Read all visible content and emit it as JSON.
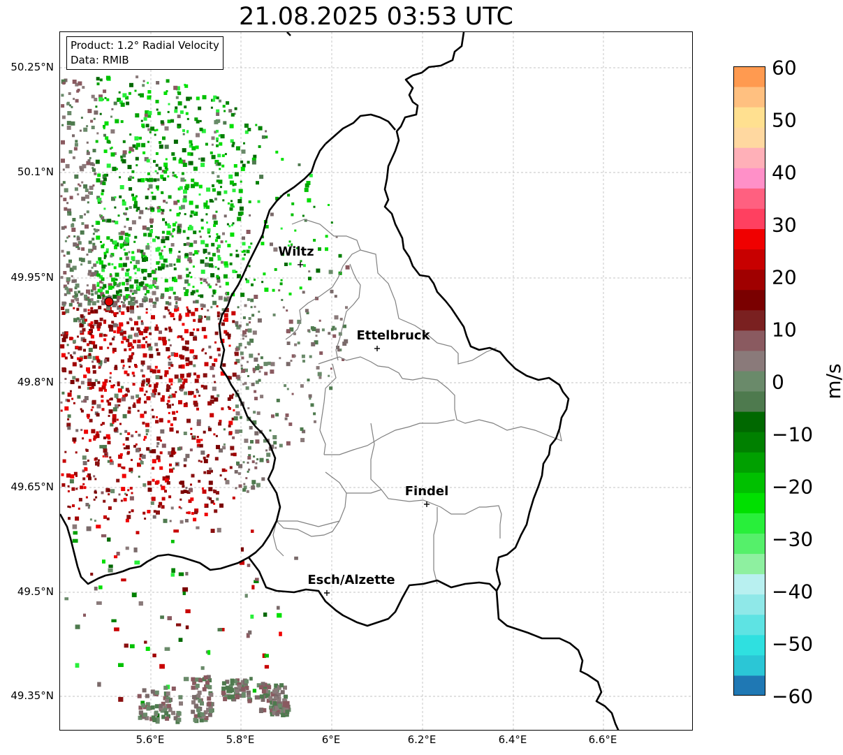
{
  "title": "21.08.2025 03:53 UTC",
  "info": {
    "product": "Product: 1.2° Radial Velocity",
    "data": "Data: RMIB"
  },
  "y_ticks": [
    "50.25°N",
    "50.1°N",
    "49.95°N",
    "49.8°N",
    "49.65°N",
    "49.5°N",
    "49.35°N"
  ],
  "x_ticks": [
    "5.6°E",
    "5.8°E",
    "6°E",
    "6.2°E",
    "6.4°E",
    "6.6°E"
  ],
  "cities": [
    {
      "name": "Wiltz"
    },
    {
      "name": "Ettelbruck"
    },
    {
      "name": "Findel"
    },
    {
      "name": "Esch/Alzette"
    }
  ],
  "colorbar": {
    "unit": "m/s",
    "ticks": [
      "60",
      "50",
      "40",
      "30",
      "20",
      "10",
      "0",
      "−10",
      "−20",
      "−30",
      "−40",
      "−50",
      "−60"
    ],
    "min": -60,
    "max": 60,
    "colors": [
      "#1f78b4",
      "#2bc6d6",
      "#2fe0e0",
      "#5ee3e3",
      "#8fe8e8",
      "#b8f0f0",
      "#8ef0a0",
      "#55f06a",
      "#28ef3a",
      "#00e000",
      "#00c000",
      "#00a000",
      "#008000",
      "#006800",
      "#4e7a4e",
      "#6a8a6a",
      "#8a7a7a",
      "#8a5a60",
      "#7a2020",
      "#7a0000",
      "#a00000",
      "#c80000",
      "#f00000",
      "#ff4060",
      "#ff6080",
      "#ff90c8",
      "#ffb0b8",
      "#ffd8a0",
      "#ffe090",
      "#ffc080",
      "#ff9a50"
    ]
  }
}
